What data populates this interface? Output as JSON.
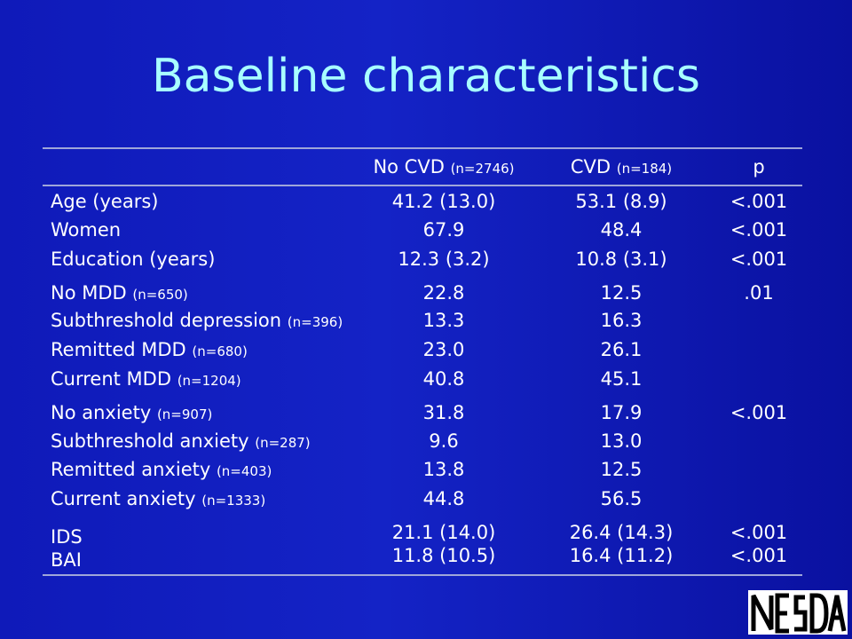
{
  "title": "Baseline characteristics",
  "header": {
    "col1": {
      "label": "No CVD",
      "n": "(n=2746)"
    },
    "col2": {
      "label": "CVD",
      "n": "(n=184)"
    },
    "col3": "p"
  },
  "rows": [
    {
      "label": "Age (years)",
      "n": "",
      "c1": "41.2 (13.0)",
      "c2": "53.1 (8.9)",
      "p": "<.001"
    },
    {
      "label": "Women",
      "n": "",
      "c1": "67.9",
      "c2": "48.4",
      "p": "<.001"
    },
    {
      "label": "Education (years)",
      "n": "",
      "c1": "12.3 (3.2)",
      "c2": "10.8 (3.1)",
      "p": "<.001"
    },
    {
      "label": "No MDD ",
      "n": "(n=650)",
      "c1": "22.8",
      "c2": "12.5",
      "p": ".01"
    },
    {
      "label": "Subthreshold depression ",
      "n": "(n=396)",
      "c1": "13.3",
      "c2": "16.3",
      "p": ""
    },
    {
      "label": "Remitted MDD ",
      "n": "(n=680)",
      "c1": "23.0",
      "c2": "26.1",
      "p": ""
    },
    {
      "label": "Current MDD ",
      "n": "(n=1204)",
      "c1": "40.8",
      "c2": "45.1",
      "p": ""
    },
    {
      "label": "No anxiety ",
      "n": "(n=907)",
      "c1": "31.8",
      "c2": "17.9",
      "p": "<.001"
    },
    {
      "label": "Subthreshold anxiety ",
      "n": "(n=287)",
      "c1": "9.6",
      "c2": "13.0",
      "p": ""
    },
    {
      "label": "Remitted anxiety ",
      "n": "(n=403)",
      "c1": "13.8",
      "c2": "12.5",
      "p": ""
    },
    {
      "label": "Current anxiety ",
      "n": "(n=1333)",
      "c1": "44.8",
      "c2": "56.5",
      "p": ""
    },
    {
      "label": "IDS",
      "n": "",
      "c1": "21.1 (14.0)",
      "c2": "26.4 (14.3)",
      "p": "<.001"
    },
    {
      "label": "BAI",
      "n": "",
      "c1": "11.8 (10.5)",
      "c2": "16.4 (11.2)",
      "p": "<.001"
    }
  ],
  "logo": {
    "text": "NESDA",
    "color": "#000000",
    "background": "#ffffff"
  }
}
